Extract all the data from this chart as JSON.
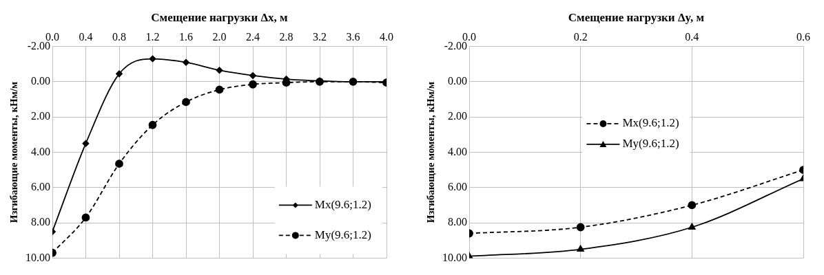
{
  "chart_data": [
    {
      "type": "line",
      "xlabel": "Смещение нагрузки Δx, м",
      "ylabel": "Изгибающие моменты, кНм/м",
      "x": [
        0.0,
        0.4,
        0.8,
        1.2,
        1.6,
        2.0,
        2.4,
        2.8,
        3.2,
        3.6,
        4.0
      ],
      "series": [
        {
          "name": "Mx(9.6;1.2)",
          "color": "#000000",
          "marker": "diamond",
          "line_style": "solid",
          "values": [
            8.5,
            3.5,
            -0.45,
            -1.3,
            -1.1,
            -0.65,
            -0.35,
            -0.15,
            -0.05,
            0.0,
            0.0
          ]
        },
        {
          "name": "My(9.6;1.2)",
          "color": "#000000",
          "marker": "circle",
          "line_style": "dashed",
          "values": [
            9.7,
            7.7,
            4.65,
            2.45,
            1.15,
            0.45,
            0.15,
            0.05,
            0.0,
            0.0,
            0.05
          ]
        }
      ],
      "xlim": [
        0,
        4
      ],
      "xticks": [
        {
          "value": 0,
          "label": "0.0"
        },
        {
          "value": 0.4,
          "label": "0.4"
        },
        {
          "value": 0.8,
          "label": "0.8"
        },
        {
          "value": 1.2,
          "label": "1.2"
        },
        {
          "value": 1.6,
          "label": "1.6"
        },
        {
          "value": 2.0,
          "label": "2.0"
        },
        {
          "value": 2.4,
          "label": "2.4"
        },
        {
          "value": 2.8,
          "label": "2.8"
        },
        {
          "value": 3.2,
          "label": "3.2"
        },
        {
          "value": 3.6,
          "label": "3.6"
        },
        {
          "value": 4.0,
          "label": "4.0"
        }
      ],
      "ylim": [
        10,
        -2
      ],
      "yticks": [
        {
          "value": -2,
          "label": "-2.00"
        },
        {
          "value": 0,
          "label": "0.00"
        },
        {
          "value": 2,
          "label": "2.00"
        },
        {
          "value": 4,
          "label": "4.00"
        },
        {
          "value": 6,
          "label": "6.00"
        },
        {
          "value": 8,
          "label": "8.00"
        },
        {
          "value": 10,
          "label": "10.00"
        }
      ],
      "grid": true,
      "legend": "bottom right"
    },
    {
      "type": "line",
      "xlabel": "Смещение нагрузки Δy, м",
      "ylabel": "Изгибающие моменты, кНм/м",
      "x": [
        0.0,
        0.2,
        0.4,
        0.6
      ],
      "series": [
        {
          "name": "Mx(9.6;1.2)",
          "color": "#000000",
          "marker": "circle",
          "line_style": "dashed",
          "values": [
            8.6,
            8.25,
            7.0,
            5.0
          ]
        },
        {
          "name": "My(9.6;1.2)",
          "color": "#000000",
          "marker": "triangle",
          "line_style": "solid",
          "values": [
            9.9,
            9.5,
            8.25,
            5.5
          ]
        }
      ],
      "xlim": [
        0,
        0.6
      ],
      "xticks": [
        {
          "value": 0,
          "label": "0.0"
        },
        {
          "value": 0.2,
          "label": "0.2"
        },
        {
          "value": 0.4,
          "label": "0.4"
        },
        {
          "value": 0.6,
          "label": "0.6"
        }
      ],
      "ylim": [
        10,
        -2
      ],
      "yticks": [
        {
          "value": -2,
          "label": "-2.00"
        },
        {
          "value": 0,
          "label": "0.00"
        },
        {
          "value": 2,
          "label": "2.00"
        },
        {
          "value": 4,
          "label": "4.00"
        },
        {
          "value": 6,
          "label": "6.00"
        },
        {
          "value": 8,
          "label": "8.00"
        },
        {
          "value": 10,
          "label": "10.00"
        }
      ],
      "grid": true,
      "legend": "center"
    }
  ]
}
